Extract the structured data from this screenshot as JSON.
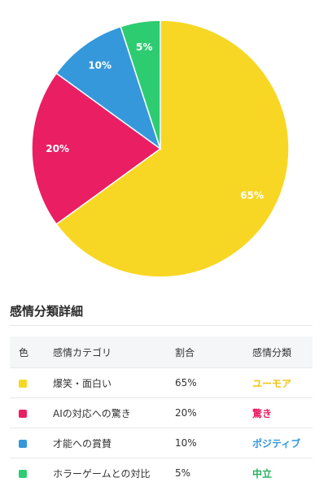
{
  "chart_data": {
    "type": "pie",
    "start_angle_deg": 0,
    "direction": "clockwise",
    "slices": [
      {
        "label": "65%",
        "value": 65,
        "color": "#f7d724"
      },
      {
        "label": "20%",
        "value": 20,
        "color": "#e91e63"
      },
      {
        "label": "10%",
        "value": 10,
        "color": "#3498db"
      },
      {
        "label": "5%",
        "value": 5,
        "color": "#2ecc71"
      }
    ]
  },
  "section": {
    "title": "感情分類詳細"
  },
  "table": {
    "headers": {
      "color": "色",
      "category": "感情カテゴリ",
      "share": "割合",
      "classification": "感情分類"
    },
    "rows": [
      {
        "swatch": "#f7d724",
        "category": "爆笑・面白い",
        "share": "65%",
        "classification": "ユーモア",
        "class_color": "#f1c40f"
      },
      {
        "swatch": "#e91e63",
        "category": "AIの対応への驚き",
        "share": "20%",
        "classification": "驚き",
        "class_color": "#e91e63"
      },
      {
        "swatch": "#3498db",
        "category": "才能への賞賛",
        "share": "10%",
        "classification": "ポジティブ",
        "class_color": "#3498db"
      },
      {
        "swatch": "#2ecc71",
        "category": "ホラーゲームとの対比",
        "share": "5%",
        "classification": "中立",
        "class_color": "#27ae60"
      }
    ]
  }
}
